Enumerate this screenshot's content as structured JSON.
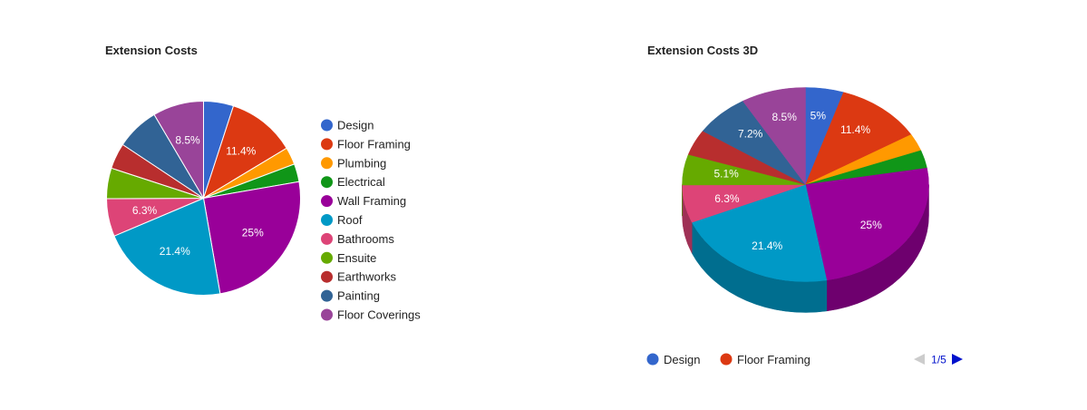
{
  "chart_data": [
    {
      "type": "pie",
      "title": "Extension Costs",
      "categories": [
        "Design",
        "Floor Framing",
        "Plumbing",
        "Electrical",
        "Wall Framing",
        "Roof",
        "Bathrooms",
        "Ensuite",
        "Earthworks",
        "Painting",
        "Floor Coverings"
      ],
      "values": [
        5.0,
        11.4,
        2.9,
        3.0,
        25.0,
        21.4,
        6.3,
        5.1,
        4.3,
        7.2,
        8.5
      ],
      "slice_labels": [
        "",
        "11.4%",
        "",
        "",
        "25%",
        "21.4%",
        "6.3%",
        "",
        "",
        "",
        "8.5%"
      ],
      "colors": [
        "#3366cc",
        "#dc3912",
        "#ff9900",
        "#109618",
        "#990099",
        "#0099c6",
        "#dd4477",
        "#66aa00",
        "#b82e2e",
        "#316395",
        "#994499"
      ],
      "legend_position": "right"
    },
    {
      "type": "pie",
      "title": "Extension Costs 3D",
      "is3D": true,
      "categories": [
        "Design",
        "Floor Framing",
        "Plumbing",
        "Electrical",
        "Wall Framing",
        "Roof",
        "Bathrooms",
        "Ensuite",
        "Earthworks",
        "Painting",
        "Floor Coverings"
      ],
      "values": [
        5.0,
        11.4,
        2.9,
        3.0,
        25.0,
        21.4,
        6.3,
        5.1,
        4.3,
        7.2,
        8.5
      ],
      "slice_labels": [
        "5%",
        "11.4%",
        "",
        "",
        "25%",
        "21.4%",
        "6.3%",
        "5.1%",
        "",
        "7.2%",
        "8.5%"
      ],
      "colors": [
        "#3366cc",
        "#dc3912",
        "#ff9900",
        "#109618",
        "#990099",
        "#0099c6",
        "#dd4477",
        "#66aa00",
        "#b82e2e",
        "#316395",
        "#994499"
      ],
      "legend_position": "bottom",
      "legend_visible": [
        "Design",
        "Floor Framing"
      ],
      "legend_page": "1/5"
    }
  ]
}
